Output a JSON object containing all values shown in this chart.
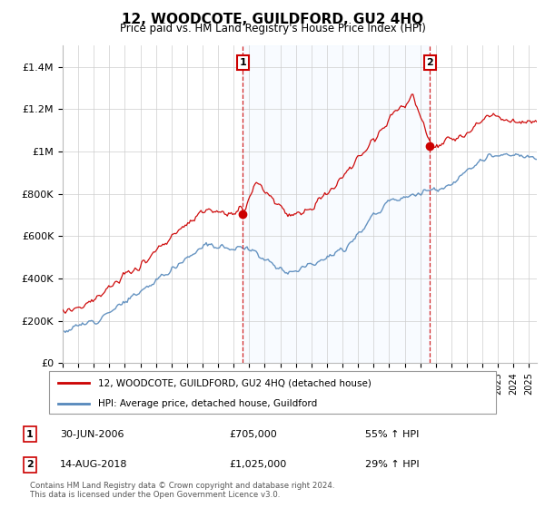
{
  "title": "12, WOODCOTE, GUILDFORD, GU2 4HQ",
  "subtitle": "Price paid vs. HM Land Registry's House Price Index (HPI)",
  "legend_label_red": "12, WOODCOTE, GUILDFORD, GU2 4HQ (detached house)",
  "legend_label_blue": "HPI: Average price, detached house, Guildford",
  "transaction1_date": "30-JUN-2006",
  "transaction1_price": "£705,000",
  "transaction1_note": "55% ↑ HPI",
  "transaction2_date": "14-AUG-2018",
  "transaction2_price": "£1,025,000",
  "transaction2_note": "29% ↑ HPI",
  "footer": "Contains HM Land Registry data © Crown copyright and database right 2024.\nThis data is licensed under the Open Government Licence v3.0.",
  "red_color": "#cc0000",
  "blue_color": "#5588bb",
  "shade_color": "#ddeeff",
  "vline_color": "#cc0000",
  "grid_color": "#cccccc",
  "bg_color": "#ffffff",
  "ylim": [
    0,
    1500000
  ],
  "ytick_vals": [
    0,
    200000,
    400000,
    600000,
    800000,
    1000000,
    1200000,
    1400000
  ],
  "ytick_labels": [
    "£0",
    "£200K",
    "£400K",
    "£600K",
    "£800K",
    "£1M",
    "£1.2M",
    "£1.4M"
  ],
  "xmin": 1995,
  "xmax": 2025.5,
  "t1_x": 2006.58,
  "t1_y": 705000,
  "t2_x": 2018.62,
  "t2_y": 1025000
}
